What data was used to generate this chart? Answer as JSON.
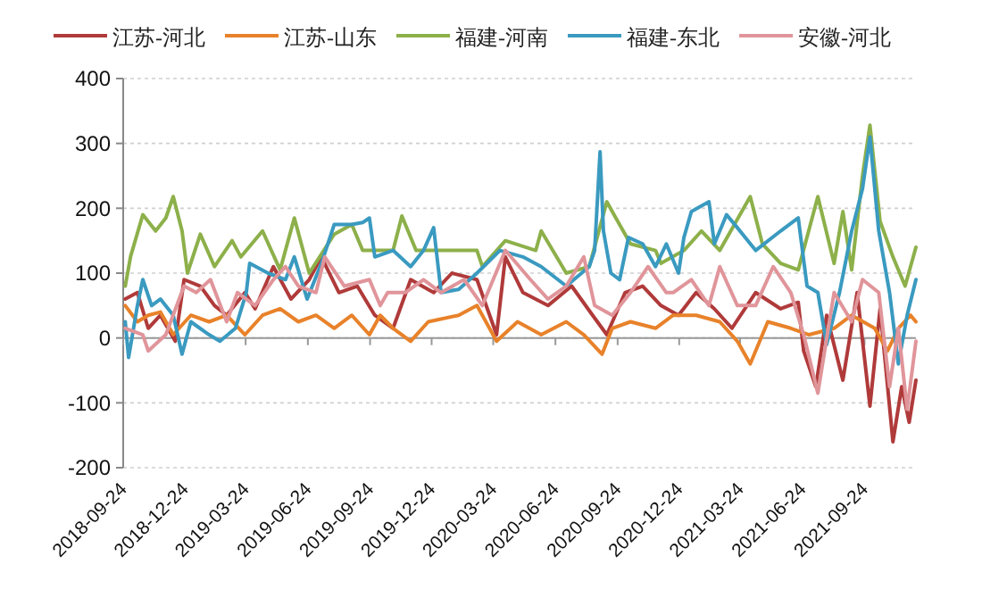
{
  "chart_data": {
    "type": "line",
    "legend": "top",
    "grid": "y",
    "line_style": "solid",
    "marker": "none",
    "ylim": [
      -200,
      400
    ],
    "yticks": [
      -200,
      -100,
      0,
      100,
      200,
      300,
      400
    ],
    "xlim": [
      "2018-09-24",
      "2021-12-09"
    ],
    "xticks": [
      "2018-09-24",
      "2018-12-24",
      "2019-03-24",
      "2019-06-24",
      "2019-09-24",
      "2019-12-24",
      "2020-03-24",
      "2020-06-24",
      "2020-09-24",
      "2020-12-24",
      "2021-03-24",
      "2021-06-24",
      "2021-09-24"
    ],
    "series": [
      {
        "name": "江苏-河北",
        "color": "#b03a3a",
        "x": [
          "2018-09-27",
          "2018-10-15",
          "2018-10-31",
          "2018-11-18",
          "2018-12-10",
          "2018-12-23",
          "2019-01-16",
          "2019-02-06",
          "2019-02-24",
          "2019-03-23",
          "2019-04-07",
          "2019-05-04",
          "2019-05-30",
          "2019-06-26",
          "2019-07-14",
          "2019-08-09",
          "2019-09-05",
          "2019-10-01",
          "2019-10-28",
          "2019-11-23",
          "2019-12-27",
          "2020-01-23",
          "2020-02-29",
          "2020-03-29",
          "2020-04-11",
          "2020-05-07",
          "2020-06-13",
          "2020-07-18",
          "2020-08-18",
          "2020-09-08",
          "2020-10-05",
          "2020-10-31",
          "2020-11-27",
          "2020-12-23",
          "2021-01-18",
          "2021-02-14",
          "2021-03-12",
          "2021-04-16",
          "2021-05-23",
          "2021-06-18",
          "2021-06-26",
          "2021-07-14",
          "2021-07-30",
          "2021-08-23",
          "2021-09-13",
          "2021-10-02",
          "2021-10-17",
          "2021-11-05",
          "2021-11-18",
          "2021-11-29",
          "2021-12-09"
        ],
        "values": [
          60,
          70,
          15,
          35,
          -5,
          90,
          80,
          50,
          35,
          70,
          45,
          110,
          60,
          90,
          125,
          70,
          80,
          35,
          15,
          90,
          70,
          100,
          90,
          5,
          125,
          70,
          50,
          80,
          35,
          5,
          70,
          80,
          50,
          35,
          70,
          45,
          15,
          70,
          45,
          55,
          -20,
          -75,
          35,
          -65,
          70,
          -105,
          45,
          -160,
          -75,
          -130,
          -65
        ]
      },
      {
        "name": "江苏-山东",
        "color": "#e8822a",
        "x": [
          "2018-09-27",
          "2018-10-15",
          "2018-10-31",
          "2018-11-18",
          "2018-12-07",
          "2019-01-02",
          "2019-01-29",
          "2019-02-24",
          "2019-03-23",
          "2019-04-18",
          "2019-05-14",
          "2019-06-10",
          "2019-07-06",
          "2019-08-02",
          "2019-08-28",
          "2019-09-23",
          "2019-10-09",
          "2019-10-28",
          "2019-11-23",
          "2019-12-19",
          "2020-02-02",
          "2020-02-29",
          "2020-03-29",
          "2020-04-29",
          "2020-06-03",
          "2020-07-10",
          "2020-08-05",
          "2020-09-01",
          "2020-09-16",
          "2020-10-13",
          "2020-11-19",
          "2020-12-15",
          "2021-01-18",
          "2021-02-22",
          "2021-03-20",
          "2021-04-08",
          "2021-05-04",
          "2021-06-07",
          "2021-07-04",
          "2021-08-10",
          "2021-09-05",
          "2021-10-09",
          "2021-10-28",
          "2021-11-13",
          "2021-12-01",
          "2021-12-09"
        ],
        "values": [
          50,
          25,
          35,
          40,
          5,
          35,
          25,
          35,
          5,
          35,
          45,
          25,
          35,
          15,
          35,
          5,
          35,
          15,
          -5,
          25,
          35,
          50,
          -5,
          25,
          5,
          25,
          5,
          -25,
          15,
          25,
          15,
          35,
          35,
          25,
          -5,
          -40,
          25,
          15,
          5,
          15,
          35,
          15,
          -20,
          15,
          35,
          25
        ]
      },
      {
        "name": "福建-河南",
        "color": "#8db04a",
        "x": [
          "2018-09-27",
          "2018-10-05",
          "2018-10-23",
          "2018-11-11",
          "2018-11-26",
          "2018-12-07",
          "2018-12-20",
          "2018-12-28",
          "2019-01-16",
          "2019-02-06",
          "2019-03-04",
          "2019-03-17",
          "2019-04-18",
          "2019-05-14",
          "2019-06-04",
          "2019-06-26",
          "2019-08-02",
          "2019-08-28",
          "2019-09-13",
          "2019-10-28",
          "2019-11-10",
          "2019-12-01",
          "2020-01-07",
          "2020-02-29",
          "2020-03-08",
          "2020-04-11",
          "2020-05-26",
          "2020-06-03",
          "2020-07-10",
          "2020-08-13",
          "2020-09-08",
          "2020-09-16",
          "2020-10-13",
          "2020-11-19",
          "2020-11-27",
          "2020-12-31",
          "2021-01-26",
          "2021-02-22",
          "2021-04-08",
          "2021-04-26",
          "2021-05-23",
          "2021-06-18",
          "2021-07-17",
          "2021-08-10",
          "2021-08-23",
          "2021-09-05",
          "2021-09-21",
          "2021-10-02",
          "2021-10-17",
          "2021-11-05",
          "2021-11-23",
          "2021-12-09"
        ],
        "values": [
          80,
          126,
          190,
          165,
          185,
          218,
          165,
          100,
          160,
          110,
          150,
          125,
          165,
          105,
          185,
          100,
          160,
          175,
          135,
          135,
          188,
          135,
          135,
          135,
          110,
          150,
          135,
          165,
          100,
          110,
          210,
          195,
          145,
          135,
          115,
          135,
          165,
          135,
          218,
          145,
          115,
          105,
          218,
          115,
          195,
          105,
          250,
          328,
          180,
          125,
          80,
          140
        ]
      },
      {
        "name": "福建-东北",
        "color": "#3a9ac0",
        "x": [
          "2018-09-27",
          "2018-10-02",
          "2018-10-15",
          "2018-10-23",
          "2018-11-05",
          "2018-11-18",
          "2018-12-07",
          "2018-12-20",
          "2019-01-02",
          "2019-01-29",
          "2019-02-14",
          "2019-03-09",
          "2019-03-25",
          "2019-03-30",
          "2019-04-26",
          "2019-05-22",
          "2019-06-04",
          "2019-06-23",
          "2019-07-14",
          "2019-08-02",
          "2019-08-28",
          "2019-09-13",
          "2019-09-23",
          "2019-10-01",
          "2019-10-28",
          "2019-11-23",
          "2019-12-12",
          "2019-12-27",
          "2020-01-07",
          "2020-02-02",
          "2020-02-29",
          "2020-04-03",
          "2020-05-07",
          "2020-06-03",
          "2020-07-10",
          "2020-08-13",
          "2020-08-21",
          "2020-08-29",
          "2020-09-03",
          "2020-09-14",
          "2020-09-27",
          "2020-10-10",
          "2020-10-31",
          "2020-11-19",
          "2020-12-05",
          "2020-12-23",
          "2020-12-31",
          "2021-01-11",
          "2021-02-06",
          "2021-02-14",
          "2021-03-04",
          "2021-03-20",
          "2021-04-16",
          "2021-05-23",
          "2021-06-18",
          "2021-07-01",
          "2021-07-17",
          "2021-07-30",
          "2021-08-18",
          "2021-09-05",
          "2021-09-21",
          "2021-10-02",
          "2021-10-15",
          "2021-10-31",
          "2021-11-13",
          "2021-11-26",
          "2021-12-09"
        ],
        "values": [
          25,
          -30,
          50,
          90,
          50,
          60,
          35,
          -25,
          25,
          5,
          -5,
          15,
          70,
          115,
          100,
          90,
          125,
          60,
          115,
          175,
          175,
          178,
          185,
          125,
          135,
          110,
          135,
          170,
          70,
          75,
          100,
          135,
          125,
          110,
          80,
          110,
          135,
          287,
          165,
          100,
          90,
          155,
          145,
          110,
          145,
          100,
          155,
          195,
          210,
          145,
          190,
          170,
          135,
          165,
          185,
          80,
          70,
          -10,
          70,
          165,
          230,
          310,
          165,
          70,
          -40,
          35,
          90
        ]
      },
      {
        "name": "安徽-河北",
        "color": "#e0959a",
        "x": [
          "2018-09-27",
          "2018-10-23",
          "2018-10-31",
          "2018-11-26",
          "2018-12-23",
          "2019-01-10",
          "2019-01-31",
          "2019-02-24",
          "2019-03-12",
          "2019-04-07",
          "2019-05-04",
          "2019-05-22",
          "2019-06-10",
          "2019-07-06",
          "2019-07-19",
          "2019-08-17",
          "2019-09-23",
          "2019-10-09",
          "2019-10-20",
          "2019-11-15",
          "2019-12-12",
          "2020-01-07",
          "2020-02-10",
          "2020-03-08",
          "2020-04-11",
          "2020-05-18",
          "2020-06-13",
          "2020-07-10",
          "2020-08-05",
          "2020-08-21",
          "2020-09-16",
          "2020-10-13",
          "2020-11-08",
          "2020-12-05",
          "2020-12-15",
          "2021-01-11",
          "2021-02-06",
          "2021-02-22",
          "2021-03-20",
          "2021-04-16",
          "2021-05-12",
          "2021-06-07",
          "2021-06-26",
          "2021-07-17",
          "2021-08-10",
          "2021-09-05",
          "2021-09-21",
          "2021-10-15",
          "2021-10-31",
          "2021-11-13",
          "2021-11-26",
          "2021-12-09"
        ],
        "values": [
          15,
          5,
          -20,
          5,
          80,
          70,
          90,
          25,
          70,
          50,
          90,
          110,
          80,
          70,
          125,
          80,
          90,
          50,
          70,
          70,
          90,
          70,
          90,
          50,
          135,
          90,
          60,
          80,
          125,
          50,
          35,
          70,
          110,
          70,
          70,
          90,
          50,
          110,
          50,
          50,
          110,
          70,
          5,
          -85,
          70,
          25,
          90,
          70,
          -75,
          15,
          -110,
          -5
        ]
      }
    ]
  }
}
